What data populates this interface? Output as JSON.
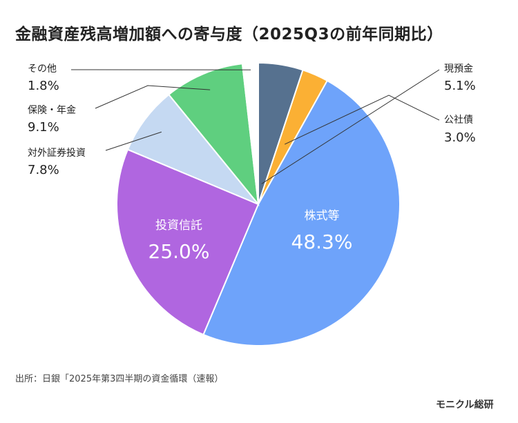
{
  "title": "金融資産残高増加額への寄与度（2025Q3の前年同期比）",
  "source": "出所：日銀「2025年第3四半期の資金循環（速報）",
  "brand": "モニクル総研",
  "chart_data": {
    "type": "pie",
    "title": "金融資産残高増加額への寄与度（2025Q3の前年同期比）",
    "unit": "%",
    "slices": [
      {
        "label": "現預金",
        "value": 5.1,
        "display": "5.1%",
        "color": "#56718f"
      },
      {
        "label": "公社債",
        "value": 3.0,
        "display": "3.0%",
        "color": "#fbb034"
      },
      {
        "label": "株式等",
        "value": 48.3,
        "display": "48.3%",
        "color": "#6ea3fa"
      },
      {
        "label": "投資信託",
        "value": 25.0,
        "display": "25.0%",
        "color": "#b066e0"
      },
      {
        "label": "対外証券投資",
        "value": 7.8,
        "display": "7.8%",
        "color": "#c5d9f2"
      },
      {
        "label": "保険・年金",
        "value": 9.1,
        "display": "9.1%",
        "color": "#5fcf7f"
      },
      {
        "label": "その他",
        "value": 1.8,
        "display": "1.8%",
        "color": "#ffffff"
      }
    ]
  }
}
